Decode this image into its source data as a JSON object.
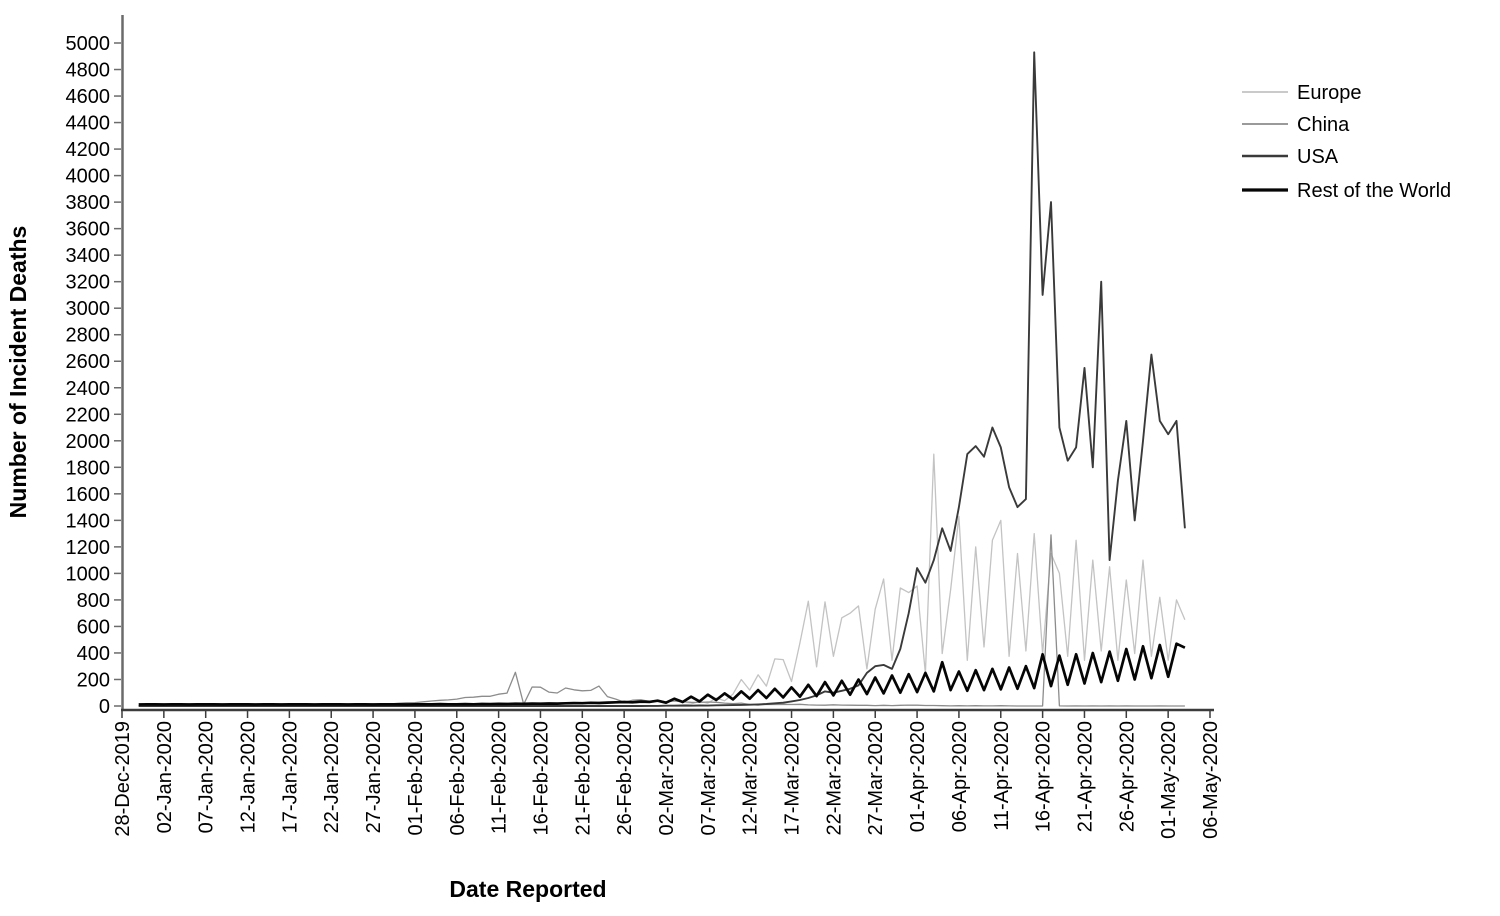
{
  "chart_data": {
    "type": "line",
    "title": "",
    "xlabel": "Date Reported",
    "ylabel": "Number of Incident Deaths",
    "grid": false,
    "legend_position": "top-right",
    "ylim": [
      0,
      5000
    ],
    "y_ticks": [
      0,
      200,
      400,
      600,
      800,
      1000,
      1200,
      1400,
      1600,
      1800,
      2000,
      2200,
      2400,
      2600,
      2800,
      3000,
      3200,
      3400,
      3600,
      3800,
      4000,
      4200,
      4400,
      4600,
      4800,
      5000
    ],
    "x_tick_labels": [
      "28-Dec-2019",
      "02-Jan-2020",
      "07-Jan-2020",
      "12-Jan-2020",
      "17-Jan-2020",
      "22-Jan-2020",
      "27-Jan-2020",
      "01-Feb-2020",
      "06-Feb-2020",
      "11-Feb-2020",
      "16-Feb-2020",
      "21-Feb-2020",
      "26-Feb-2020",
      "02-Mar-2020",
      "07-Mar-2020",
      "12-Mar-2020",
      "17-Mar-2020",
      "22-Mar-2020",
      "27-Mar-2020",
      "01-Apr-2020",
      "06-Apr-2020",
      "11-Apr-2020",
      "16-Apr-2020",
      "21-Apr-2020",
      "26-Apr-2020",
      "01-May-2020",
      "06-May-2020"
    ],
    "days_per_tick": 5,
    "start_day_offset": 2,
    "series": [
      {
        "name": "Europe",
        "color": "#c3c3c3",
        "width": 1.3,
        "values": [
          0,
          0,
          0,
          0,
          0,
          0,
          0,
          0,
          0,
          0,
          0,
          0,
          0,
          0,
          0,
          0,
          0,
          0,
          0,
          0,
          0,
          0,
          0,
          0,
          0,
          0,
          0,
          0,
          0,
          0,
          0,
          0,
          0,
          0,
          0,
          0,
          0,
          0,
          0,
          0,
          0,
          0,
          0,
          0,
          0,
          0,
          0,
          0,
          0,
          0,
          0,
          0,
          0,
          0,
          0,
          0,
          0,
          0,
          0,
          0,
          1,
          2,
          1,
          3,
          2,
          4,
          5,
          8,
          15,
          35,
          22,
          60,
          40,
          90,
          200,
          120,
          235,
          150,
          355,
          350,
          185,
          475,
          790,
          295,
          785,
          375,
          665,
          700,
          755,
          280,
          730,
          958,
          345,
          890,
          855,
          905,
          245,
          1900,
          395,
          875,
          1430,
          345,
          1200,
          445,
          1250,
          1400,
          375,
          1150,
          415,
          1300,
          395,
          1150,
          1000,
          375,
          1250,
          345,
          1100,
          415,
          1050,
          345,
          950,
          395,
          1100,
          375,
          820,
          345,
          800,
          650
        ]
      },
      {
        "name": "China",
        "color": "#8c8c8c",
        "width": 1.3,
        "values": [
          0,
          0,
          0,
          0,
          0,
          0,
          0,
          0,
          0,
          0,
          0,
          0,
          0,
          0,
          1,
          0,
          1,
          0,
          1,
          1,
          0,
          2,
          1,
          2,
          3,
          4,
          6,
          8,
          9,
          12,
          15,
          16,
          15,
          20,
          24,
          26,
          32,
          38,
          43,
          46,
          52,
          64,
          66,
          73,
          73,
          89,
          97,
          254,
          13,
          143,
          142,
          105,
          98,
          136,
          122,
          115,
          118,
          150,
          71,
          52,
          29,
          44,
          47,
          35,
          42,
          31,
          38,
          31,
          28,
          27,
          30,
          28,
          22,
          17,
          22,
          11,
          7,
          13,
          11,
          13,
          11,
          13,
          8,
          7,
          6,
          9,
          7,
          6,
          5,
          5,
          3,
          5,
          3,
          5,
          7,
          6,
          4,
          4,
          2,
          1,
          2,
          1,
          2,
          1,
          1,
          2,
          1,
          0,
          0,
          0,
          0,
          1290,
          1,
          0,
          1,
          0,
          1,
          0,
          1,
          0,
          1,
          0,
          0,
          0,
          1,
          0,
          0,
          0
        ]
      },
      {
        "name": "USA",
        "color": "#3a3a3a",
        "width": 1.9,
        "values": [
          0,
          0,
          0,
          0,
          0,
          0,
          0,
          0,
          0,
          0,
          0,
          0,
          0,
          0,
          0,
          0,
          0,
          0,
          0,
          0,
          0,
          0,
          0,
          0,
          0,
          0,
          0,
          0,
          0,
          0,
          0,
          0,
          0,
          0,
          0,
          0,
          0,
          0,
          0,
          0,
          0,
          0,
          0,
          0,
          0,
          0,
          0,
          0,
          0,
          0,
          0,
          0,
          0,
          0,
          0,
          0,
          0,
          0,
          0,
          0,
          0,
          0,
          0,
          1,
          1,
          2,
          2,
          3,
          2,
          4,
          3,
          5,
          6,
          7,
          8,
          10,
          12,
          15,
          20,
          25,
          35,
          45,
          60,
          80,
          110,
          100,
          115,
          130,
          155,
          250,
          300,
          310,
          280,
          430,
          700,
          1040,
          930,
          1100,
          1340,
          1170,
          1500,
          1900,
          1960,
          1880,
          2100,
          1950,
          1650,
          1500,
          1560,
          4930,
          3100,
          3800,
          2100,
          1850,
          1950,
          2550,
          1800,
          3200,
          1100,
          1700,
          2150,
          1400,
          2000,
          2650,
          2150,
          2050,
          2150,
          1340
        ]
      },
      {
        "name": "Rest of the World",
        "color": "#050505",
        "width": 2.7,
        "values": [
          10,
          12,
          11,
          13,
          12,
          11,
          13,
          12,
          11,
          12,
          13,
          12,
          11,
          12,
          13,
          12,
          11,
          13,
          12,
          11,
          12,
          13,
          12,
          11,
          12,
          13,
          12,
          11,
          13,
          12,
          11,
          12,
          13,
          12,
          11,
          12,
          13,
          12,
          14,
          13,
          12,
          14,
          13,
          15,
          14,
          16,
          15,
          17,
          16,
          18,
          17,
          19,
          18,
          20,
          22,
          21,
          24,
          23,
          26,
          28,
          30,
          28,
          33,
          31,
          40,
          25,
          55,
          30,
          70,
          35,
          85,
          45,
          95,
          50,
          110,
          55,
          120,
          60,
          130,
          65,
          140,
          70,
          160,
          75,
          180,
          80,
          190,
          85,
          200,
          90,
          215,
          95,
          230,
          100,
          240,
          105,
          250,
          110,
          330,
          120,
          260,
          115,
          270,
          120,
          280,
          125,
          290,
          130,
          300,
          135,
          390,
          150,
          380,
          160,
          390,
          170,
          400,
          180,
          410,
          190,
          430,
          200,
          450,
          210,
          460,
          220,
          470,
          440
        ]
      }
    ]
  }
}
